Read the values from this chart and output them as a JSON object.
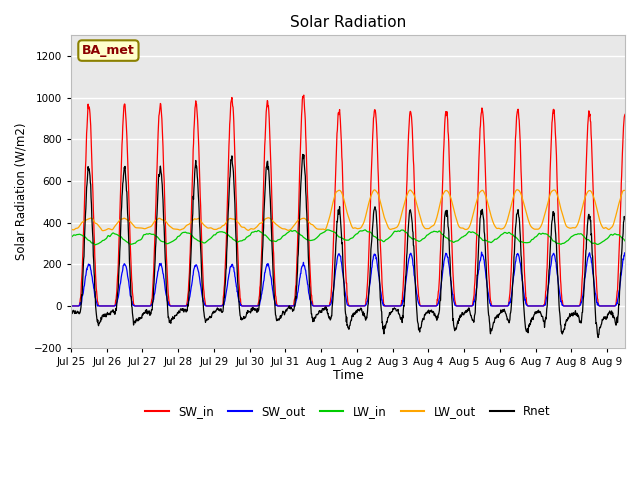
{
  "title": "Solar Radiation",
  "xlabel": "Time",
  "ylabel": "Solar Radiation (W/m2)",
  "ylim": [
    -200,
    1300
  ],
  "yticks": [
    -200,
    0,
    200,
    400,
    600,
    800,
    1000,
    1200
  ],
  "n_days": 15.5,
  "pts_per_day": 96,
  "colors": {
    "SW_in": "#ff0000",
    "SW_out": "#0000ff",
    "LW_in": "#00cc00",
    "LW_out": "#ffa500",
    "Rnet": "#000000"
  },
  "annotation_text": "BA_met",
  "plot_bg_color": "#e8e8e8",
  "fig_bg_color": "#ffffff",
  "legend_items": [
    "SW_in",
    "SW_out",
    "LW_in",
    "LW_out",
    "Rnet"
  ]
}
